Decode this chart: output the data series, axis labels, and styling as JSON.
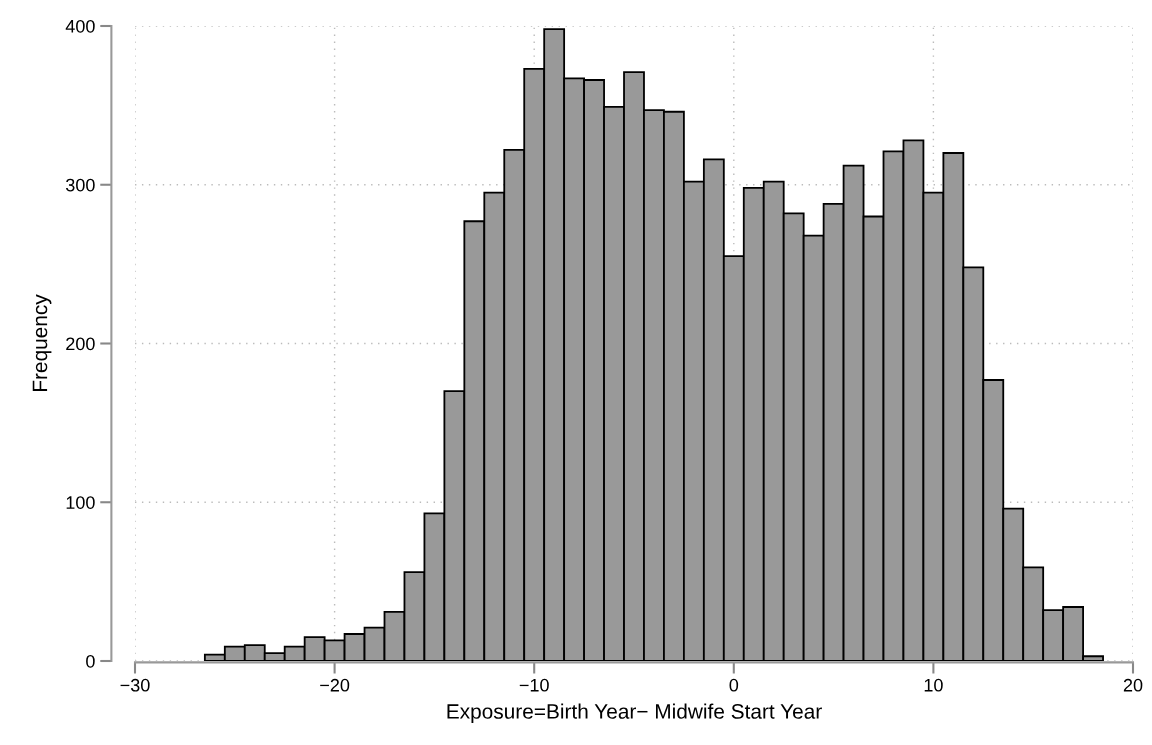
{
  "chart_data": {
    "type": "histogram",
    "xlabel": "Exposure=Birth Year− Midwife Start Year",
    "ylabel": "Frequency",
    "bins": [
      -26.5,
      -25.5,
      -24.5,
      -23.5,
      -22.5,
      -21.5,
      -20.5,
      -19.5,
      -18.5,
      -17.5,
      -16.5,
      -15.5,
      -14.5,
      -13.5,
      -12.5,
      -11.5,
      -10.5,
      -9.5,
      -8.5,
      -7.5,
      -6.5,
      -5.5,
      -4.5,
      -3.5,
      -2.5,
      -1.5,
      -0.5,
      0.5,
      1.5,
      2.5,
      3.5,
      4.5,
      5.5,
      6.5,
      7.5,
      8.5,
      9.5,
      10.5,
      11.5,
      12.5,
      13.5,
      14.5,
      15.5,
      16.5,
      17.5,
      18.5
    ],
    "values": [
      4,
      9,
      10,
      5,
      9,
      15,
      13,
      17,
      21,
      31,
      56,
      93,
      170,
      277,
      295,
      322,
      373,
      398,
      367,
      366,
      349,
      371,
      347,
      346,
      302,
      316,
      255,
      298,
      302,
      282,
      268,
      288,
      312,
      280,
      321,
      328,
      295,
      320,
      248,
      177,
      96,
      59,
      32,
      34,
      3
    ],
    "color": "#999999",
    "xlim": [
      -30,
      20
    ],
    "ylim": [
      0,
      400
    ],
    "xticks": [
      {
        "value": -30,
        "label": "−30"
      },
      {
        "value": -20,
        "label": "−20"
      },
      {
        "value": -10,
        "label": "−10"
      },
      0,
      10,
      20
    ],
    "yticks": [
      0,
      100,
      200,
      300,
      400
    ],
    "grid": true
  }
}
